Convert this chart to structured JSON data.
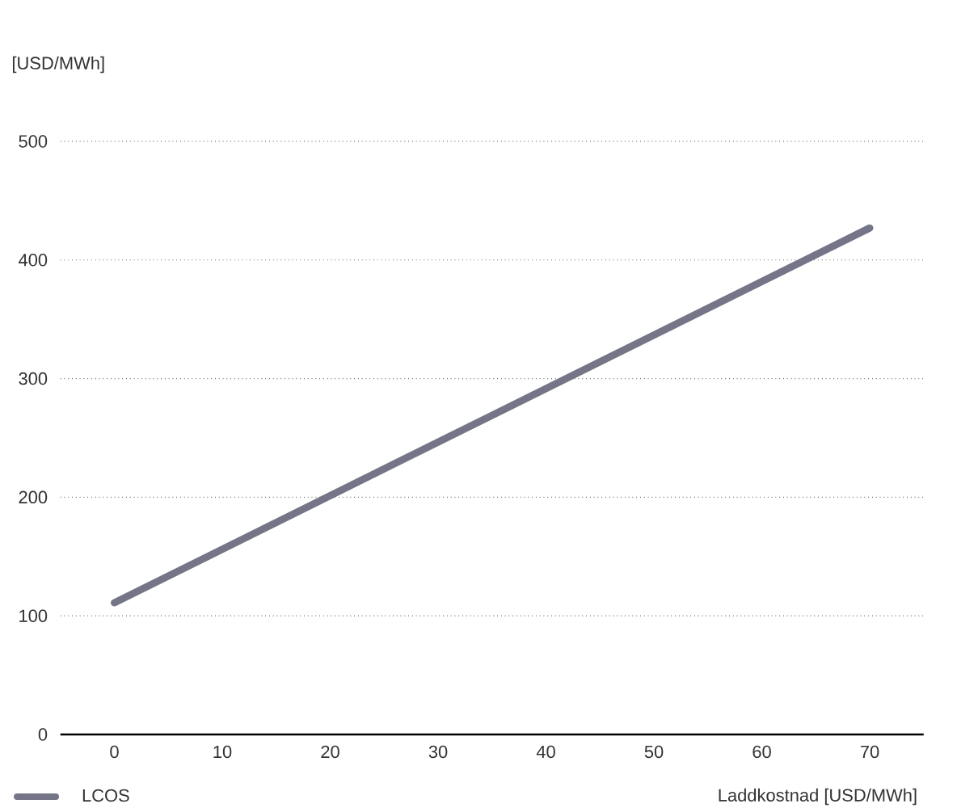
{
  "chart_data": {
    "type": "line",
    "xlabel": "Laddkostnad [USD/MWh]",
    "ylabel": "[USD/MWh]",
    "x": [
      0,
      70
    ],
    "series": [
      {
        "name": "LCOS",
        "color": "#747687",
        "values": [
          111,
          427
        ]
      }
    ],
    "xlim": [
      -5,
      75
    ],
    "xticks": [
      0,
      10,
      20,
      30,
      40,
      50,
      60,
      70
    ],
    "ylim": [
      0,
      500
    ],
    "yticks": [
      0,
      100,
      200,
      300,
      400,
      500
    ],
    "grid": "y",
    "legend": "bottom left",
    "marker": "none",
    "line_style": "solid"
  }
}
